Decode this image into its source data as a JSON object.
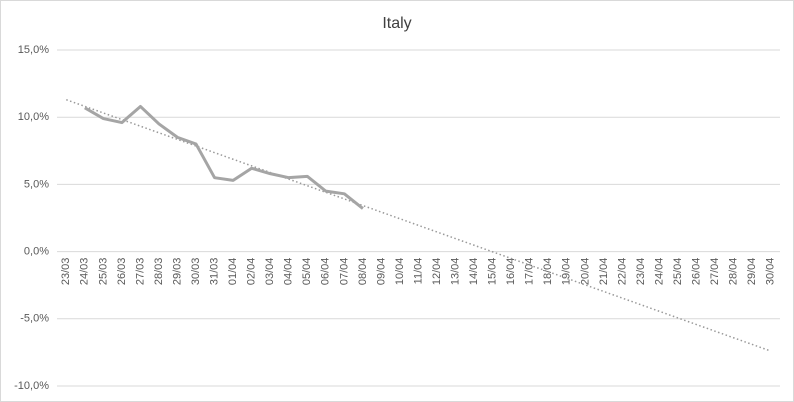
{
  "chart_data": {
    "type": "line",
    "title": "Italy",
    "categories": [
      "23/03",
      "24/03",
      "25/03",
      "26/03",
      "27/03",
      "28/03",
      "29/03",
      "30/03",
      "31/03",
      "01/04",
      "02/04",
      "03/04",
      "04/04",
      "05/04",
      "06/04",
      "07/04",
      "08/04",
      "09/04",
      "10/04",
      "11/04",
      "12/04",
      "13/04",
      "14/04",
      "15/04",
      "16/04",
      "17/04",
      "18/04",
      "19/04",
      "20/04",
      "21/04",
      "22/04",
      "23/04",
      "24/04",
      "25/04",
      "26/04",
      "27/04",
      "28/04",
      "29/04",
      "30/04"
    ],
    "values": [
      null,
      10.7,
      9.9,
      9.6,
      10.8,
      9.5,
      8.5,
      8.0,
      5.5,
      5.3,
      6.2,
      5.8,
      5.5,
      5.6,
      4.5,
      4.3,
      3.2,
      null,
      null,
      null,
      null,
      null,
      null,
      null,
      null,
      null,
      null,
      null,
      null,
      null,
      null,
      null,
      null,
      null,
      null,
      null,
      null,
      null,
      null
    ],
    "color": "#a5a5a5",
    "trendline": {
      "values": [
        11.3,
        -7.4
      ],
      "color": "#999999"
    },
    "ylim": [
      -10,
      15
    ],
    "yticks": [
      {
        "value": -10,
        "label": "-10,0%"
      },
      {
        "value": -5,
        "label": "-5,0%"
      },
      {
        "value": 0,
        "label": "0,0%"
      },
      {
        "value": 5,
        "label": "5,0%"
      },
      {
        "value": 10,
        "label": "10,0%"
      },
      {
        "value": 15,
        "label": "15,0%"
      }
    ],
    "grid": true
  }
}
